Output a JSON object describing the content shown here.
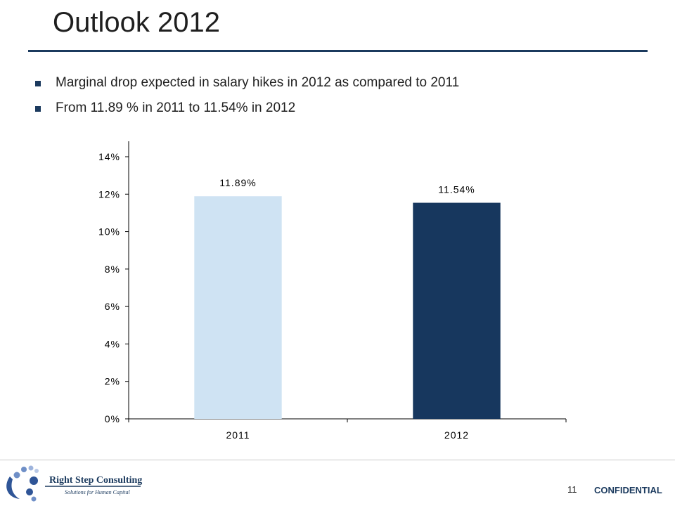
{
  "slide": {
    "title": "Outlook 2012",
    "bullets": [
      "Marginal drop expected in salary hikes in 2012 as compared to 2011",
      "From 11.89 % in 2011 to 11.54% in 2012"
    ]
  },
  "chart_data": {
    "type": "bar",
    "title": "",
    "xlabel": "",
    "ylabel": "",
    "categories": [
      "2011",
      "2012"
    ],
    "values": [
      11.89,
      11.54
    ],
    "data_labels": [
      "11.89%",
      "11.54%"
    ],
    "bar_colors": [
      "#cfe3f3",
      "#17375e"
    ],
    "ylim": [
      0,
      14
    ],
    "yticks": [
      0,
      2,
      4,
      6,
      8,
      10,
      12,
      14
    ],
    "ytick_labels": [
      "0%",
      "2%",
      "4%",
      "6%",
      "8%",
      "10%",
      "12%",
      "14%"
    ],
    "grid": false,
    "legend": "none"
  },
  "footer": {
    "company": "Right Step Consulting",
    "tagline": "Solutions for Human Capital",
    "page_number": "11",
    "confidential": "CONFIDENTIAL"
  },
  "colors": {
    "accent": "#1b3a5e",
    "text": "#1f1f1f"
  }
}
